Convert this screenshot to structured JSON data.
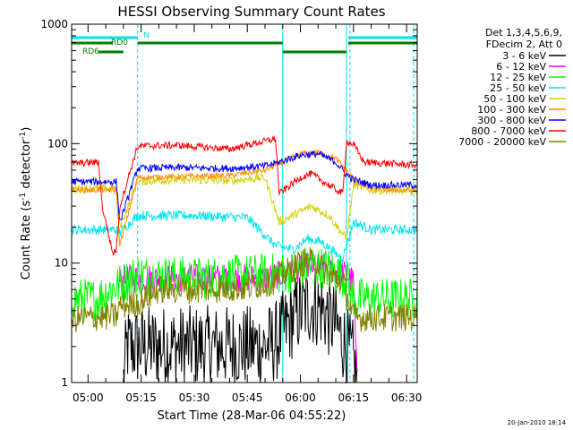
{
  "chart_data": {
    "type": "line",
    "title": "HESSI Observing Summary Count Rates",
    "xlabel": "Start Time (28-Mar-06 04:55:22)",
    "ylabel_main": "Count Rate (s",
    "ylabel_sup1": "-1",
    "ylabel_mid": " detector",
    "ylabel_sup2": "-1",
    "ylabel_end": ")",
    "yscale": "log",
    "xlim": [
      "04:55:22",
      "06:33:00"
    ],
    "ylim": [
      1,
      1000
    ],
    "x_ticks": [
      "05:00",
      "05:15",
      "05:30",
      "05:45",
      "06:00",
      "06:15",
      "06:30"
    ],
    "y_ticks": [
      {
        "value": 1,
        "label": "1"
      },
      {
        "value": 10,
        "label": "10"
      },
      {
        "value": 100,
        "label": "100"
      },
      {
        "value": 1000,
        "label": "1000"
      }
    ],
    "legend_header": [
      "Det 1,3,4,5,6,9,",
      "FDecim 2, Att 0"
    ],
    "legend_position": "right",
    "timestamp": "20-Jan-2010 18:14",
    "flags": [
      {
        "label": "N",
        "color": "#00e5ee",
        "segments": [
          [
            "04:55:22",
            "05:14:00"
          ],
          [
            "06:13:30",
            "06:33:00"
          ]
        ]
      },
      {
        "label": "RD0",
        "color": "#007f00",
        "segments": [
          [
            "04:55:22",
            "05:07:00"
          ],
          [
            "05:14:00",
            "05:55:00"
          ],
          [
            "06:13:30",
            "06:33:00"
          ]
        ]
      },
      {
        "label": "RD6",
        "color": "#007f00",
        "segments": [
          [
            "05:03:00",
            "05:10:00"
          ],
          [
            "05:55:00",
            "06:13:00"
          ]
        ]
      }
    ],
    "vlines": [
      {
        "time": "04:55:22",
        "color": "#00e5ee",
        "style": "solid"
      },
      {
        "time": "05:14:00",
        "color": "#00e5ee",
        "style": "dashed"
      },
      {
        "time": "05:55:00",
        "color": "#00e5ee",
        "style": "solid"
      },
      {
        "time": "06:13:00",
        "color": "#00e5ee",
        "style": "solid"
      },
      {
        "time": "06:14:00",
        "color": "#00e5ee",
        "style": "dashed"
      },
      {
        "time": "06:32:00",
        "color": "#00e5ee",
        "style": "dashed"
      }
    ],
    "series": [
      {
        "name": "3 - 6 keV",
        "color": "#000000",
        "noise": 0.35,
        "points": [
          [
            "05:10",
            1
          ],
          [
            "05:11",
            2
          ],
          [
            "05:12",
            2
          ],
          [
            "05:30",
            2
          ],
          [
            "05:50",
            2
          ],
          [
            "05:53",
            2.2
          ],
          [
            "05:58",
            3.5
          ],
          [
            "06:02",
            4.5
          ],
          [
            "06:06",
            4.2
          ],
          [
            "06:10",
            3
          ],
          [
            "06:13",
            2
          ],
          [
            "06:15",
            1.5
          ],
          [
            "06:16",
            1
          ]
        ]
      },
      {
        "name": "6 - 12 keV",
        "color": "#ff00ff",
        "noise": 0.12,
        "points": [
          [
            "05:09",
            7
          ],
          [
            "05:12",
            7.5
          ],
          [
            "05:30",
            7.5
          ],
          [
            "05:50",
            7.5
          ],
          [
            "05:58",
            8.5
          ],
          [
            "06:02",
            9.5
          ],
          [
            "06:08",
            9
          ],
          [
            "06:13",
            8
          ],
          [
            "06:15",
            7
          ],
          [
            "06:16",
            1
          ]
        ]
      },
      {
        "name": "12 - 25 keV",
        "color": "#00ff00",
        "noise": 0.18,
        "points": [
          [
            "04:55:22",
            5
          ],
          [
            "05:03",
            5
          ],
          [
            "05:04",
            5.5
          ],
          [
            "05:14",
            8
          ],
          [
            "05:30",
            7.5
          ],
          [
            "05:50",
            8
          ],
          [
            "05:58",
            8.5
          ],
          [
            "06:02",
            9.5
          ],
          [
            "06:08",
            9
          ],
          [
            "06:13",
            7.5
          ],
          [
            "06:15",
            5
          ],
          [
            "06:33",
            5
          ]
        ]
      },
      {
        "name": "25 - 50 keV",
        "color": "#00e5ee",
        "noise": 0.04,
        "points": [
          [
            "04:55:22",
            19
          ],
          [
            "05:08",
            19
          ],
          [
            "05:09",
            18
          ],
          [
            "05:14",
            25
          ],
          [
            "05:30",
            25
          ],
          [
            "05:45",
            24
          ],
          [
            "05:53",
            14
          ],
          [
            "05:58",
            13
          ],
          [
            "06:02",
            16
          ],
          [
            "06:06",
            15
          ],
          [
            "06:10",
            12
          ],
          [
            "06:12",
            11
          ],
          [
            "06:15",
            22
          ],
          [
            "06:20",
            19
          ],
          [
            "06:33",
            19
          ]
        ]
      },
      {
        "name": "50 - 100 keV",
        "color": "#d2d200",
        "noise": 0.035,
        "points": [
          [
            "04:55:22",
            42
          ],
          [
            "05:08",
            42
          ],
          [
            "05:09",
            20
          ],
          [
            "05:14",
            48
          ],
          [
            "05:25",
            50
          ],
          [
            "05:40",
            49
          ],
          [
            "05:50",
            52
          ],
          [
            "05:54",
            22
          ],
          [
            "06:00",
            27
          ],
          [
            "06:03",
            30
          ],
          [
            "06:08",
            25
          ],
          [
            "06:13",
            16
          ],
          [
            "06:15",
            45
          ],
          [
            "06:20",
            41
          ],
          [
            "06:33",
            40
          ]
        ]
      },
      {
        "name": "100 - 300 keV",
        "color": "#ff8c00",
        "noise": 0.025,
        "points": [
          [
            "04:55:22",
            41
          ],
          [
            "05:08",
            41
          ],
          [
            "05:09",
            14
          ],
          [
            "05:14",
            52
          ],
          [
            "05:25",
            53
          ],
          [
            "05:40",
            54
          ],
          [
            "05:50",
            60
          ],
          [
            "05:54",
            68
          ],
          [
            "06:00",
            82
          ],
          [
            "06:05",
            85
          ],
          [
            "06:10",
            75
          ],
          [
            "06:13",
            60
          ],
          [
            "06:15",
            50
          ],
          [
            "06:20",
            42
          ],
          [
            "06:33",
            40
          ]
        ]
      },
      {
        "name": "300 - 800 keV",
        "color": "#0000ff",
        "noise": 0.03,
        "points": [
          [
            "04:55:22",
            48
          ],
          [
            "05:08",
            48
          ],
          [
            "05:09",
            22
          ],
          [
            "05:14",
            62
          ],
          [
            "05:25",
            63
          ],
          [
            "05:40",
            62
          ],
          [
            "05:50",
            65
          ],
          [
            "05:54",
            70
          ],
          [
            "06:00",
            80
          ],
          [
            "06:05",
            82
          ],
          [
            "06:10",
            70
          ],
          [
            "06:13",
            55
          ],
          [
            "06:15",
            50
          ],
          [
            "06:20",
            45
          ],
          [
            "06:33",
            45
          ]
        ]
      },
      {
        "name": "800 - 7000 keV",
        "color": "#ff0000",
        "noise": 0.03,
        "points": [
          [
            "04:55:22",
            68
          ],
          [
            "05:03",
            70
          ],
          [
            "05:04",
            30
          ],
          [
            "05:07",
            12
          ],
          [
            "05:08",
            13
          ],
          [
            "05:09",
            30
          ],
          [
            "05:14",
            95
          ],
          [
            "05:25",
            97
          ],
          [
            "05:40",
            90
          ],
          [
            "05:50",
            105
          ],
          [
            "05:53",
            110
          ],
          [
            "05:54",
            38
          ],
          [
            "06:00",
            52
          ],
          [
            "06:03",
            56
          ],
          [
            "06:08",
            45
          ],
          [
            "06:12",
            38
          ],
          [
            "06:13",
            105
          ],
          [
            "06:15",
            98
          ],
          [
            "06:18",
            70
          ],
          [
            "06:33",
            66
          ]
        ]
      },
      {
        "name": "7000 - 20000 keV",
        "color": "#808000",
        "noise": 0.12,
        "points": [
          [
            "04:55:22",
            3.4
          ],
          [
            "05:08",
            3.6
          ],
          [
            "05:09",
            4.4
          ],
          [
            "05:14",
            4.6
          ],
          [
            "05:20",
            6
          ],
          [
            "05:30",
            6
          ],
          [
            "05:45",
            6.2
          ],
          [
            "05:52",
            7
          ],
          [
            "06:00",
            10
          ],
          [
            "06:04",
            10.5
          ],
          [
            "06:08",
            8
          ],
          [
            "06:12",
            7
          ],
          [
            "06:15",
            3.5
          ],
          [
            "06:33",
            3.5
          ]
        ]
      }
    ]
  }
}
